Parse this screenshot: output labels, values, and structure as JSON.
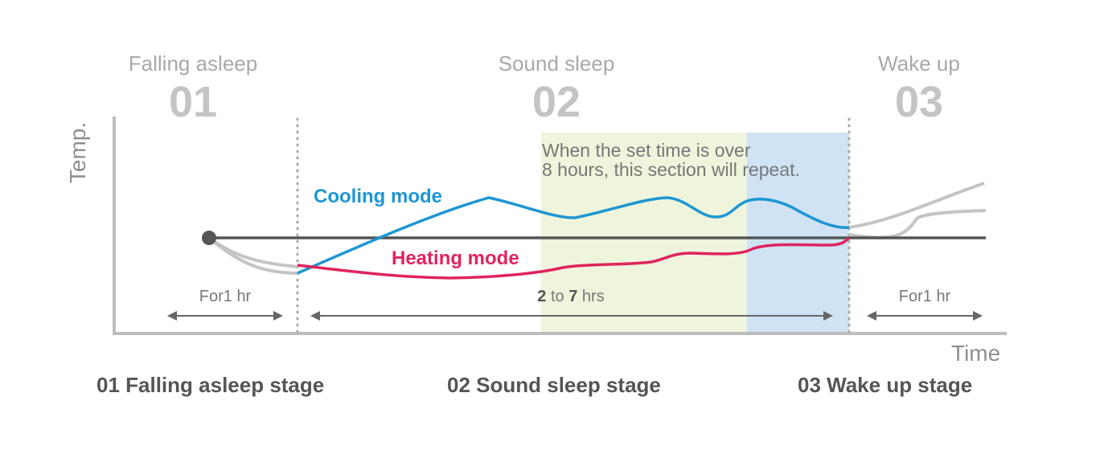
{
  "stages": [
    {
      "title": "Falling asleep",
      "number": "01"
    },
    {
      "title": "Sound sleep",
      "number": "02"
    },
    {
      "title": "Wake up",
      "number": "03"
    }
  ],
  "axes": {
    "y_label": "Temp.",
    "x_label": "Time"
  },
  "note": {
    "line1": "When the set time is over",
    "line2": "8 hours, this section will repeat."
  },
  "modes": {
    "cooling": {
      "label": "Cooling mode",
      "color": "#1e96d2"
    },
    "heating": {
      "label": "Heating mode",
      "color": "#e0245e"
    }
  },
  "durations": {
    "first": {
      "prefix": "For",
      "value": "1",
      "unit": "hr"
    },
    "second": {
      "from": "2",
      "to_word": "to",
      "to": "7",
      "unit": "hrs"
    },
    "third": {
      "prefix": "For",
      "value": "1",
      "unit": "hr"
    }
  },
  "bottom_labels": [
    "01 Falling asleep stage",
    "02 Sound sleep stage",
    "03 Wake up stage"
  ],
  "colors": {
    "repeat_zone_green": "#eef5dc",
    "repeat_zone_blue": "#cfe3f4",
    "setpoint_line": "#555555",
    "axis": "#bdbdbd",
    "stage_gray": "#bcbcbc"
  }
}
